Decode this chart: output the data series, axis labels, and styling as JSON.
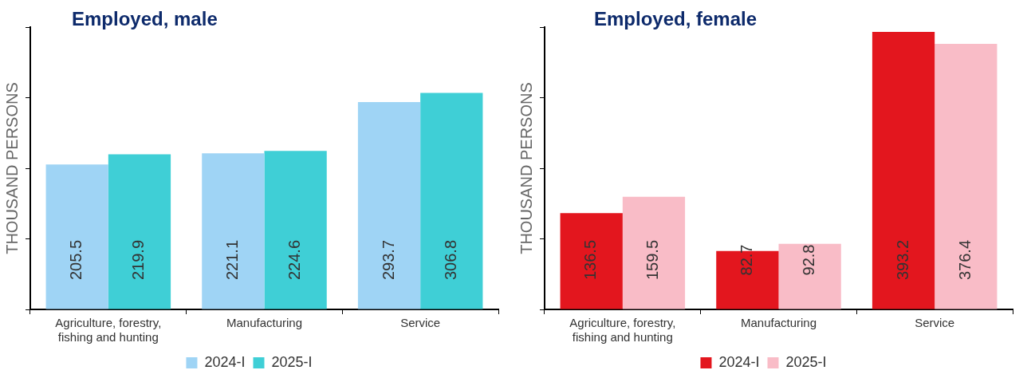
{
  "chart_data": [
    {
      "type": "bar",
      "title": "Employed, male",
      "ylabel": "THOUSAND PERSONS",
      "categories": [
        "Agriculture, forestry, fishing and hunting",
        "Manufacturing",
        "Service"
      ],
      "series": [
        {
          "name": "2024-I",
          "color": "#9fd4f5",
          "values": [
            205.5,
            221.1,
            293.7
          ]
        },
        {
          "name": "2025-I",
          "color": "#3fcfd6",
          "values": [
            219.9,
            224.6,
            306.8
          ]
        }
      ],
      "ylim": [
        0,
        400
      ],
      "yticks": [
        {
          "value": 0,
          "label": null
        },
        {
          "value": 100,
          "label": null
        },
        {
          "value": 200,
          "label": null
        },
        {
          "value": 300,
          "label": null
        },
        {
          "value": 400,
          "label": null
        }
      ],
      "tick_labels": "x",
      "grid": false,
      "legend": "bottom",
      "data_labels": true
    },
    {
      "type": "bar",
      "title": "Employed, female",
      "ylabel": "THOUSAND PERSONS",
      "categories": [
        "Agriculture, forestry, fishing and hunting",
        "Manufacturing",
        "Service"
      ],
      "series": [
        {
          "name": "2024-I",
          "color": "#e3161e",
          "values": [
            136.5,
            82.7,
            393.2
          ]
        },
        {
          "name": "2025-I",
          "color": "#f9bcc7",
          "values": [
            159.5,
            92.8,
            376.4
          ]
        }
      ],
      "ylim": [
        0,
        400
      ],
      "yticks": [
        {
          "value": 0,
          "label": null
        },
        {
          "value": 100,
          "label": null
        },
        {
          "value": 200,
          "label": null
        },
        {
          "value": 300,
          "label": null
        },
        {
          "value": 400,
          "label": null
        }
      ],
      "tick_labels": "x",
      "grid": false,
      "legend": "bottom",
      "data_labels": true
    }
  ]
}
